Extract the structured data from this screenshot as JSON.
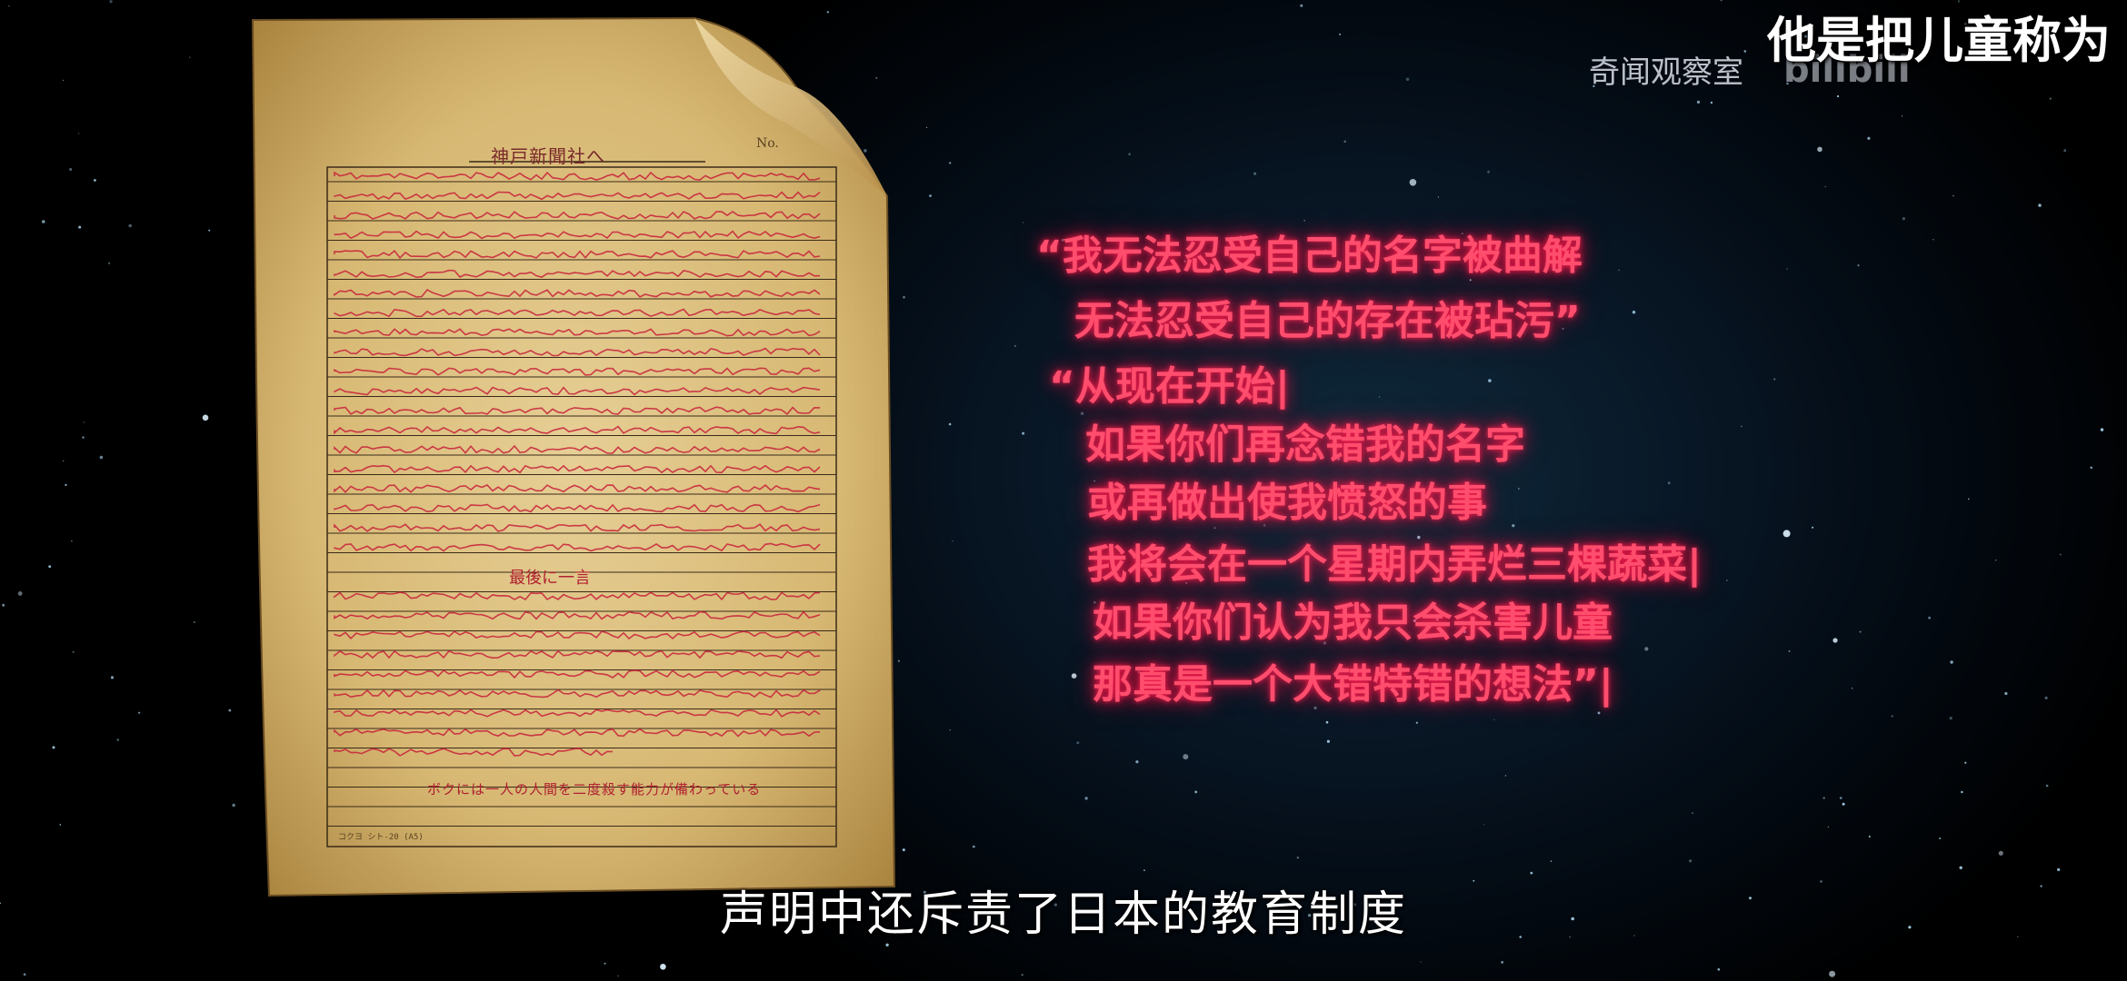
{
  "top_caption": "他是把儿童称为",
  "watermark": {
    "channel_name": "奇闻观察室",
    "logo_icon": "bilibili-logo-icon",
    "logo_text": "bilibili"
  },
  "document": {
    "title": "神戸新聞社へ",
    "number_label": "No.",
    "section_heading": "最後に一言",
    "bottom_line": "ボクには一人の人間を二度殺す能力が備わっている",
    "footer_note": "コクヨ シト-20 (A5)"
  },
  "quote": {
    "lines": [
      "“我无法忍受自己的名字被曲解",
      "无法忍受自己的存在被玷污”",
      "“从现在开始|",
      "如果你们再念错我的名字",
      "或再做出使我愤怒的事",
      "我将会在一个星期内弄烂三棵蔬菜|",
      "如果你们认为我只会杀害儿童",
      "那真是一个大错特错的想法”|"
    ],
    "color": "#ff2d55"
  },
  "subtitle": "声明中还斥责了日本的教育制度"
}
